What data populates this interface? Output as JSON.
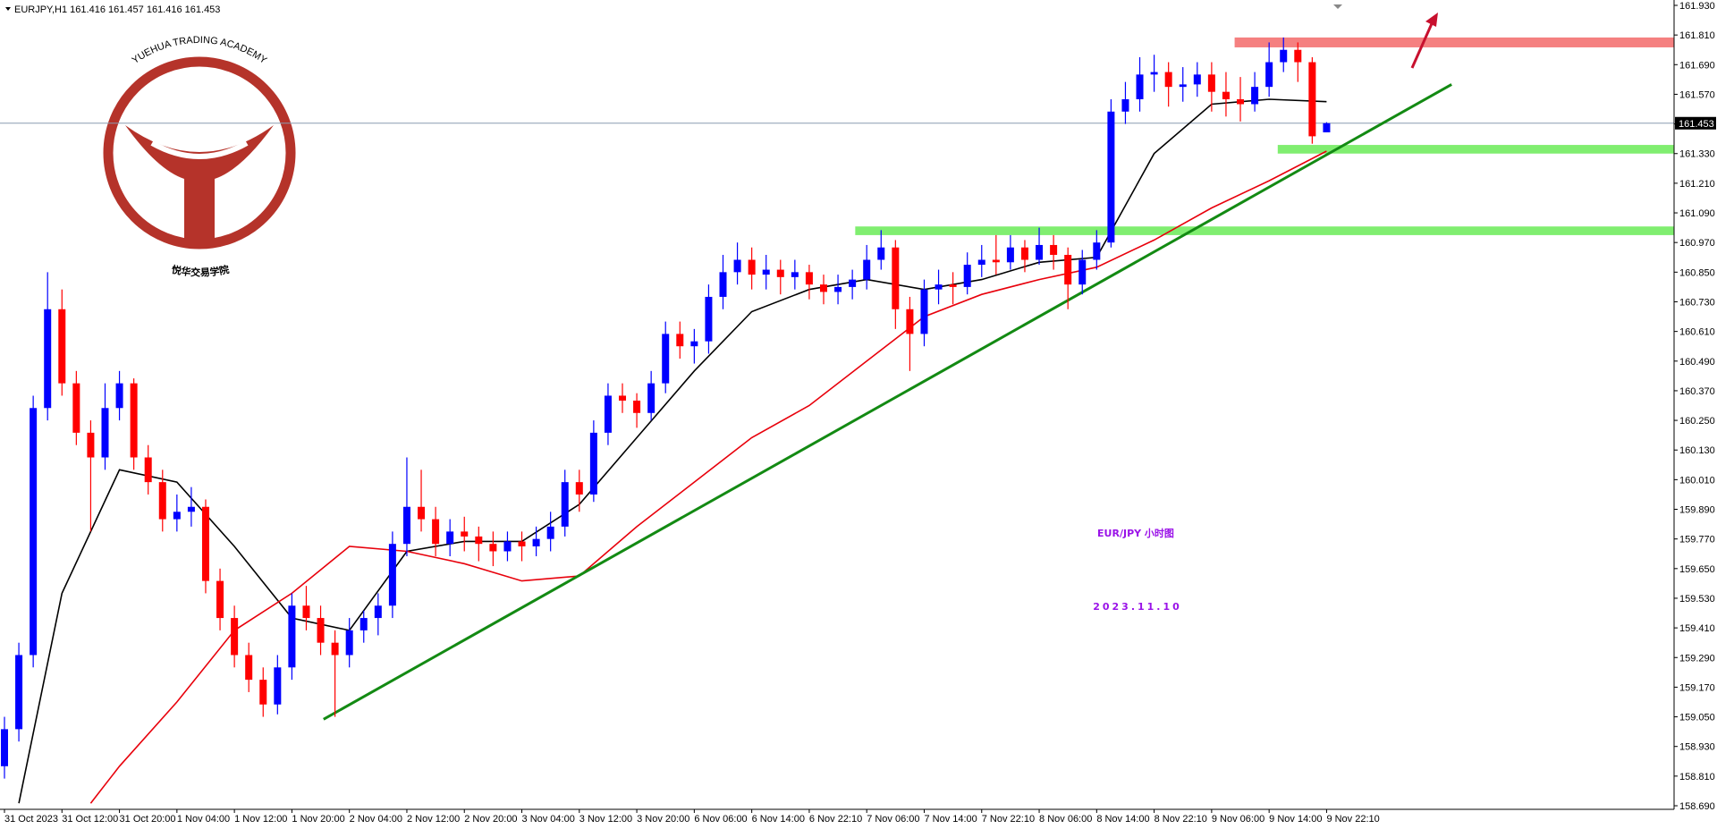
{
  "chart_data": {
    "type": "candlestick",
    "symbol": "EURJPY,H1",
    "up_color": "#0000ff",
    "down_color": "#ff0000",
    "ylim": [
      158.69,
      161.93
    ],
    "yticks": [
      {
        "value": 158.69,
        "label": "158.690"
      },
      {
        "value": 158.81,
        "label": "158.810"
      },
      {
        "value": 158.93,
        "label": "158.930"
      },
      {
        "value": 159.05,
        "label": "159.050"
      },
      {
        "value": 159.17,
        "label": "159.170"
      },
      {
        "value": 159.29,
        "label": "159.290"
      },
      {
        "value": 159.41,
        "label": "159.410"
      },
      {
        "value": 159.53,
        "label": "159.530"
      },
      {
        "value": 159.65,
        "label": "159.650"
      },
      {
        "value": 159.77,
        "label": "159.770"
      },
      {
        "value": 159.89,
        "label": "159.890"
      },
      {
        "value": 160.01,
        "label": "160.010"
      },
      {
        "value": 160.13,
        "label": "160.130"
      },
      {
        "value": 160.25,
        "label": "160.250"
      },
      {
        "value": 160.37,
        "label": "160.370"
      },
      {
        "value": 160.49,
        "label": "160.490"
      },
      {
        "value": 160.61,
        "label": "160.610"
      },
      {
        "value": 160.73,
        "label": "160.730"
      },
      {
        "value": 160.85,
        "label": "160.850"
      },
      {
        "value": 160.97,
        "label": "160.970"
      },
      {
        "value": 161.09,
        "label": "161.090"
      },
      {
        "value": 161.21,
        "label": "161.210"
      },
      {
        "value": 161.33,
        "label": "161.330"
      },
      {
        "value": 161.45,
        "label": "161.450"
      },
      {
        "value": 161.57,
        "label": "161.570"
      },
      {
        "value": 161.69,
        "label": "161.690"
      },
      {
        "value": 161.81,
        "label": "161.810"
      },
      {
        "value": 161.93,
        "label": "161.930"
      }
    ],
    "time_labels": [
      "31 Oct 2023",
      "31 Oct 12:00",
      "31 Oct 20:00",
      "1 Nov 04:00",
      "1 Nov 12:00",
      "1 Nov 20:00",
      "2 Nov 04:00",
      "2 Nov 12:00",
      "2 Nov 20:00",
      "3 Nov 04:00",
      "3 Nov 12:00",
      "3 Nov 20:00",
      "6 Nov 06:00",
      "6 Nov 14:00",
      "6 Nov 22:10",
      "7 Nov 06:00",
      "7 Nov 14:00",
      "7 Nov 22:10",
      "8 Nov 06:00",
      "8 Nov 14:00",
      "8 Nov 22:10",
      "9 Nov 06:00",
      "9 Nov 14:00",
      "9 Nov 22:10"
    ],
    "ohlc": [
      [
        158.85,
        159.05,
        158.8,
        159.0
      ],
      [
        159.0,
        159.35,
        158.95,
        159.3
      ],
      [
        159.3,
        160.35,
        159.25,
        160.3
      ],
      [
        160.3,
        160.85,
        160.25,
        160.7
      ],
      [
        160.7,
        160.78,
        160.35,
        160.4
      ],
      [
        160.4,
        160.45,
        160.15,
        160.2
      ],
      [
        160.2,
        160.25,
        159.8,
        160.1
      ],
      [
        160.1,
        160.4,
        160.05,
        160.3
      ],
      [
        160.3,
        160.45,
        160.25,
        160.4
      ],
      [
        160.4,
        160.42,
        160.05,
        160.1
      ],
      [
        160.1,
        160.15,
        159.95,
        160.0
      ],
      [
        160.0,
        160.05,
        159.8,
        159.85
      ],
      [
        159.85,
        159.95,
        159.8,
        159.88
      ],
      [
        159.88,
        159.98,
        159.82,
        159.9
      ],
      [
        159.9,
        159.93,
        159.55,
        159.6
      ],
      [
        159.6,
        159.65,
        159.4,
        159.45
      ],
      [
        159.45,
        159.5,
        159.25,
        159.3
      ],
      [
        159.3,
        159.35,
        159.15,
        159.2
      ],
      [
        159.2,
        159.25,
        159.05,
        159.1
      ],
      [
        159.1,
        159.3,
        159.06,
        159.25
      ],
      [
        159.25,
        159.55,
        159.2,
        159.5
      ],
      [
        159.5,
        159.58,
        159.4,
        159.45
      ],
      [
        159.45,
        159.5,
        159.3,
        159.35
      ],
      [
        159.35,
        159.4,
        159.05,
        159.3
      ],
      [
        159.3,
        159.45,
        159.25,
        159.4
      ],
      [
        159.4,
        159.48,
        159.35,
        159.45
      ],
      [
        159.45,
        159.55,
        159.38,
        159.5
      ],
      [
        159.5,
        159.8,
        159.45,
        159.75
      ],
      [
        159.75,
        160.1,
        159.7,
        159.9
      ],
      [
        159.9,
        160.05,
        159.8,
        159.85
      ],
      [
        159.85,
        159.9,
        159.7,
        159.75
      ],
      [
        159.75,
        159.85,
        159.7,
        159.8
      ],
      [
        159.8,
        159.86,
        159.72,
        159.78
      ],
      [
        159.78,
        159.82,
        159.68,
        159.75
      ],
      [
        159.75,
        159.8,
        159.66,
        159.72
      ],
      [
        159.72,
        159.8,
        159.68,
        159.76
      ],
      [
        159.76,
        159.8,
        159.68,
        159.74
      ],
      [
        159.74,
        159.82,
        159.7,
        159.77
      ],
      [
        159.77,
        159.88,
        159.72,
        159.82
      ],
      [
        159.82,
        160.05,
        159.78,
        160.0
      ],
      [
        160.0,
        160.05,
        159.88,
        159.95
      ],
      [
        159.95,
        160.25,
        159.92,
        160.2
      ],
      [
        160.2,
        160.4,
        160.15,
        160.35
      ],
      [
        160.35,
        160.4,
        160.28,
        160.33
      ],
      [
        160.33,
        160.36,
        160.22,
        160.28
      ],
      [
        160.28,
        160.45,
        160.25,
        160.4
      ],
      [
        160.4,
        160.65,
        160.36,
        160.6
      ],
      [
        160.6,
        160.65,
        160.5,
        160.55
      ],
      [
        160.55,
        160.62,
        160.48,
        160.57
      ],
      [
        160.57,
        160.8,
        160.52,
        160.75
      ],
      [
        160.75,
        160.92,
        160.7,
        160.85
      ],
      [
        160.85,
        160.97,
        160.8,
        160.9
      ],
      [
        160.9,
        160.95,
        160.78,
        160.84
      ],
      [
        160.84,
        160.92,
        160.78,
        160.86
      ],
      [
        160.86,
        160.9,
        160.76,
        160.83
      ],
      [
        160.83,
        160.9,
        160.78,
        160.85
      ],
      [
        160.85,
        160.88,
        160.74,
        160.8
      ],
      [
        160.8,
        160.84,
        160.72,
        160.77
      ],
      [
        160.77,
        160.84,
        160.72,
        160.79
      ],
      [
        160.79,
        160.86,
        160.74,
        160.82
      ],
      [
        160.82,
        160.96,
        160.78,
        160.9
      ],
      [
        160.9,
        161.02,
        160.86,
        160.95
      ],
      [
        160.95,
        160.98,
        160.62,
        160.7
      ],
      [
        160.7,
        160.75,
        160.45,
        160.6
      ],
      [
        160.6,
        160.82,
        160.55,
        160.78
      ],
      [
        160.78,
        160.86,
        160.72,
        160.8
      ],
      [
        160.8,
        160.85,
        160.72,
        160.79
      ],
      [
        160.79,
        160.93,
        160.76,
        160.88
      ],
      [
        160.88,
        160.96,
        160.83,
        160.9
      ],
      [
        160.9,
        161.0,
        160.84,
        160.89
      ],
      [
        160.89,
        161.0,
        160.86,
        160.95
      ],
      [
        160.95,
        160.98,
        160.85,
        160.9
      ],
      [
        160.9,
        161.03,
        160.88,
        160.96
      ],
      [
        160.96,
        161.0,
        160.86,
        160.92
      ],
      [
        160.92,
        160.95,
        160.7,
        160.8
      ],
      [
        160.8,
        160.94,
        160.76,
        160.9
      ],
      [
        160.9,
        161.02,
        160.86,
        160.97
      ],
      [
        160.97,
        161.55,
        160.95,
        161.5
      ],
      [
        161.5,
        161.62,
        161.45,
        161.55
      ],
      [
        161.55,
        161.72,
        161.5,
        161.65
      ],
      [
        161.65,
        161.73,
        161.58,
        161.66
      ],
      [
        161.66,
        161.7,
        161.52,
        161.6
      ],
      [
        161.6,
        161.68,
        161.54,
        161.61
      ],
      [
        161.61,
        161.7,
        161.56,
        161.65
      ],
      [
        161.65,
        161.7,
        161.5,
        161.58
      ],
      [
        161.58,
        161.66,
        161.48,
        161.55
      ],
      [
        161.55,
        161.64,
        161.46,
        161.53
      ],
      [
        161.53,
        161.66,
        161.5,
        161.6
      ],
      [
        161.6,
        161.78,
        161.56,
        161.7
      ],
      [
        161.7,
        161.8,
        161.66,
        161.75
      ],
      [
        161.75,
        161.78,
        161.62,
        161.7
      ],
      [
        161.7,
        161.72,
        161.37,
        161.4
      ],
      [
        161.416,
        161.457,
        161.416,
        161.453
      ]
    ],
    "indicators": [
      {
        "color": "#000000",
        "x": [
          1,
          4,
          8,
          12,
          16,
          20,
          24,
          28,
          32,
          36,
          40,
          44,
          48,
          52,
          56,
          60,
          64,
          68,
          72,
          76,
          80,
          84,
          88,
          92
        ],
        "values": [
          158.7,
          159.55,
          160.05,
          160.0,
          159.74,
          159.45,
          159.4,
          159.72,
          159.76,
          159.76,
          159.91,
          160.18,
          160.45,
          160.69,
          160.78,
          160.82,
          160.78,
          160.82,
          160.89,
          160.91,
          161.33,
          161.53,
          161.55,
          161.54
        ]
      },
      {
        "color": "#e8000b",
        "x": [
          6,
          8,
          12,
          16,
          20,
          24,
          28,
          32,
          36,
          40,
          44,
          48,
          52,
          56,
          60,
          64,
          68,
          72,
          76,
          80,
          84,
          88,
          92
        ],
        "values": [
          158.7,
          158.85,
          159.11,
          159.4,
          159.55,
          159.74,
          159.72,
          159.67,
          159.6,
          159.62,
          159.82,
          160.0,
          160.18,
          160.31,
          160.49,
          160.67,
          160.76,
          160.82,
          160.87,
          160.98,
          161.11,
          161.22,
          161.34
        ]
      }
    ],
    "trendline": {
      "color": "#138a13",
      "x": [
        22.2,
        100.7
      ],
      "values": [
        159.04,
        161.61
      ]
    },
    "zones": [
      {
        "color": "#f58080",
        "x_start": 85.6,
        "range": [
          161.76,
          161.8
        ]
      },
      {
        "color": "#80ee70",
        "x_start": 88.6,
        "range": [
          161.33,
          161.365
        ]
      },
      {
        "color": "#80ee70",
        "x_start": 59.2,
        "range": [
          161.0,
          161.035
        ]
      }
    ],
    "annotations": [
      "EUR/JPY 小时图",
      "2023.11.10"
    ],
    "logo": {
      "text_en": "YUEHUA TRADING ACADEMY",
      "text_cn": "悦华交易学院"
    }
  }
}
